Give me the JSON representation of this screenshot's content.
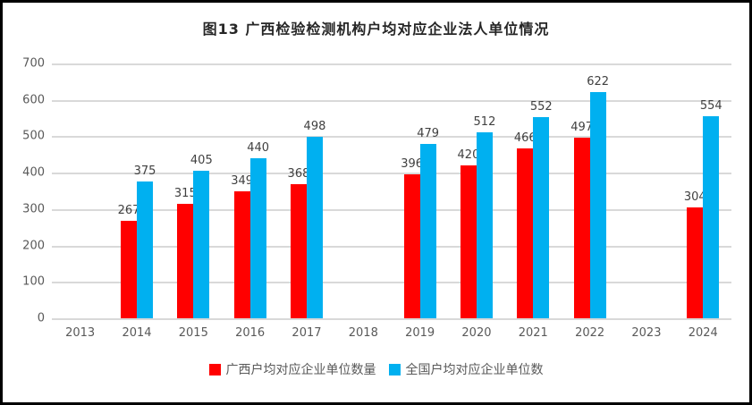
{
  "chart_data": {
    "type": "bar",
    "title": "图13 广西检验检测机构户均对应企业法人单位情况",
    "categories": [
      "2013",
      "2014",
      "2015",
      "2016",
      "2017",
      "2018",
      "2019",
      "2020",
      "2021",
      "2022",
      "2023",
      "2024"
    ],
    "series": [
      {
        "name": "广西户均对应企业单位数量",
        "color": "#ff0000",
        "values": [
          null,
          267,
          315,
          349,
          368,
          null,
          396,
          420,
          466,
          497,
          null,
          304
        ]
      },
      {
        "name": "全国户均对应企业单位数",
        "color": "#00b0f0",
        "values": [
          null,
          375,
          405,
          440,
          498,
          null,
          479,
          512,
          552,
          622,
          null,
          554
        ]
      }
    ],
    "ylim": [
      0,
      700
    ],
    "ytick_step": 100,
    "yticks": [
      "0",
      "100",
      "200",
      "300",
      "400",
      "500",
      "600",
      "700"
    ],
    "grid": "horizontal",
    "gridline_color": "#d9d9d9",
    "legend_position": "bottom",
    "xlabel": "",
    "ylabel": ""
  },
  "colors": {
    "frame_border": "#000000",
    "background": "#ffffff",
    "title_text": "#262626",
    "axis_text": "#595959",
    "data_label_text": "#404040"
  }
}
